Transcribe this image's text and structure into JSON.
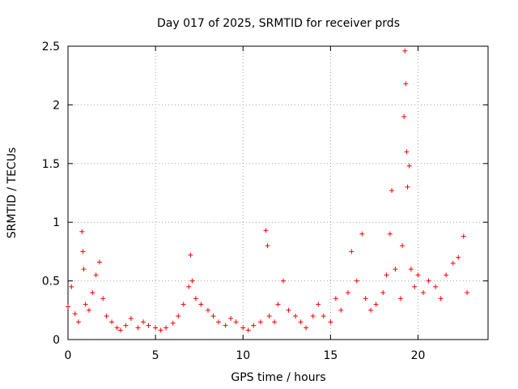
{
  "chart_data": {
    "type": "scatter",
    "title": "Day 017 of 2025, SRMTID for receiver prds",
    "xlabel": "GPS time / hours",
    "ylabel": "SRMTID / TECUs",
    "xlim": [
      0,
      24
    ],
    "ylim": [
      0,
      2.5
    ],
    "xticks": [
      0,
      5,
      10,
      15,
      20
    ],
    "yticks": [
      0,
      0.5,
      1,
      1.5,
      2,
      2.5
    ],
    "xtick_labels": [
      "0",
      "5",
      "10",
      "15",
      "20"
    ],
    "ytick_labels": [
      "0",
      "0.5",
      "1",
      "1.5",
      "2",
      "2.5"
    ],
    "grid": true,
    "marker": "+",
    "color": "#ff0000",
    "series": [
      {
        "name": "SRMTID",
        "x": [
          0.0,
          0.2,
          0.4,
          0.6,
          0.8,
          0.85,
          0.9,
          1.0,
          1.2,
          1.4,
          1.6,
          1.8,
          2.0,
          2.2,
          2.5,
          2.8,
          3.0,
          3.3,
          3.6,
          4.0,
          4.3,
          4.6,
          5.0,
          5.3,
          5.6,
          6.0,
          6.3,
          6.6,
          6.9,
          7.0,
          7.1,
          7.3,
          7.6,
          8.0,
          8.3,
          8.6,
          9.0,
          9.3,
          9.6,
          10.0,
          10.3,
          10.6,
          11.0,
          11.3,
          11.4,
          11.5,
          11.8,
          12.0,
          12.3,
          12.6,
          13.0,
          13.3,
          13.6,
          14.0,
          14.3,
          14.6,
          15.0,
          15.3,
          15.6,
          16.0,
          16.2,
          16.5,
          16.8,
          17.0,
          17.3,
          17.6,
          18.0,
          18.2,
          18.4,
          18.5,
          18.7,
          19.0,
          19.1,
          19.2,
          19.25,
          19.3,
          19.35,
          19.4,
          19.5,
          19.6,
          19.8,
          20.0,
          20.3,
          20.6,
          21.0,
          21.3,
          21.6,
          22.0,
          22.3,
          22.6,
          22.8
        ],
        "y": [
          0.28,
          0.45,
          0.22,
          0.15,
          0.92,
          0.75,
          0.6,
          0.3,
          0.25,
          0.4,
          0.55,
          0.66,
          0.35,
          0.2,
          0.15,
          0.1,
          0.08,
          0.12,
          0.18,
          0.1,
          0.15,
          0.12,
          0.1,
          0.08,
          0.1,
          0.14,
          0.2,
          0.3,
          0.45,
          0.72,
          0.5,
          0.35,
          0.3,
          0.25,
          0.2,
          0.15,
          0.12,
          0.18,
          0.15,
          0.1,
          0.08,
          0.12,
          0.15,
          0.93,
          0.8,
          0.2,
          0.15,
          0.3,
          0.5,
          0.25,
          0.2,
          0.15,
          0.1,
          0.2,
          0.3,
          0.2,
          0.15,
          0.35,
          0.25,
          0.4,
          0.75,
          0.5,
          0.9,
          0.35,
          0.25,
          0.3,
          0.4,
          0.55,
          0.9,
          1.27,
          0.6,
          0.35,
          0.8,
          1.9,
          2.46,
          2.18,
          1.6,
          1.3,
          1.48,
          0.6,
          0.45,
          0.55,
          0.4,
          0.5,
          0.45,
          0.35,
          0.55,
          0.65,
          0.7,
          0.88,
          0.4
        ]
      }
    ]
  }
}
